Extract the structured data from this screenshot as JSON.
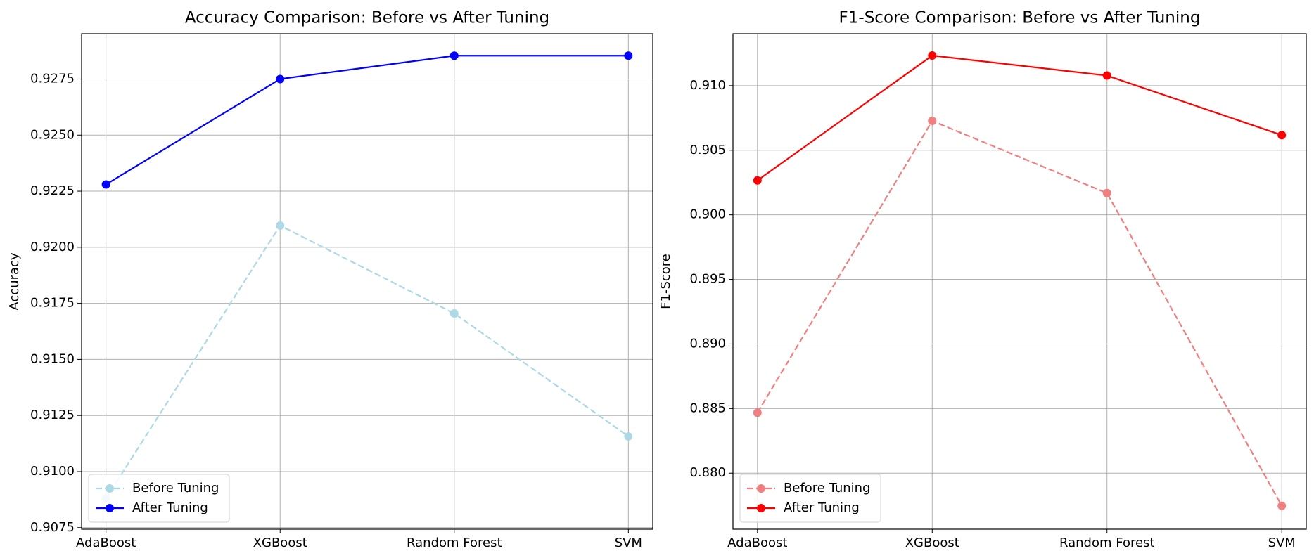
{
  "chart_data": [
    {
      "type": "line",
      "title": "Accuracy Comparison: Before vs After Tuning",
      "y_label": "Accuracy",
      "categories": [
        "AdaBoost",
        "XGBoost",
        "Random Forest",
        "SVM"
      ],
      "series": [
        {
          "name": "Before Tuning",
          "color": "#add8e6",
          "linestyle": "dashed",
          "values": [
            0.9088,
            0.92097,
            0.91705,
            0.91157
          ]
        },
        {
          "name": "After Tuning",
          "color": "#0000ff",
          "linestyle": "solid",
          "values": [
            0.9228,
            0.9275,
            0.92854,
            0.92854
          ]
        }
      ],
      "ylim": [
        0.90743,
        0.92952
      ],
      "yticks": [
        0.9075,
        {
          "value": 0.91,
          "label": "0.9100"
        },
        0.9125,
        {
          "value": 0.915,
          "label": "0.9150"
        },
        0.9175,
        {
          "value": 0.92,
          "label": "0.9200"
        },
        0.9225,
        {
          "value": 0.925,
          "label": "0.9250"
        },
        0.9275
      ],
      "grid": true,
      "legend": "lower left"
    },
    {
      "type": "line",
      "title": "F1-Score Comparison: Before vs After Tuning",
      "y_label": "F1-Score",
      "categories": [
        "AdaBoost",
        "XGBoost",
        "Random Forest",
        "SVM"
      ],
      "series": [
        {
          "name": "Before Tuning",
          "color": "#f08080",
          "linestyle": "dashed",
          "values": [
            0.88468,
            0.90727,
            0.90168,
            0.87747
          ]
        },
        {
          "name": "After Tuning",
          "color": "#ff0000",
          "linestyle": "solid",
          "values": [
            0.90266,
            0.91233,
            0.91078,
            0.90617
          ]
        }
      ],
      "ylim": [
        0.87566,
        0.91402
      ],
      "yticks": [
        {
          "value": 0.88,
          "label": "0.880"
        },
        0.885,
        {
          "value": 0.89,
          "label": "0.890"
        },
        0.895,
        {
          "value": 0.9,
          "label": "0.900"
        },
        0.905,
        {
          "value": 0.91,
          "label": "0.910"
        }
      ],
      "grid": true,
      "legend": "lower left"
    }
  ]
}
